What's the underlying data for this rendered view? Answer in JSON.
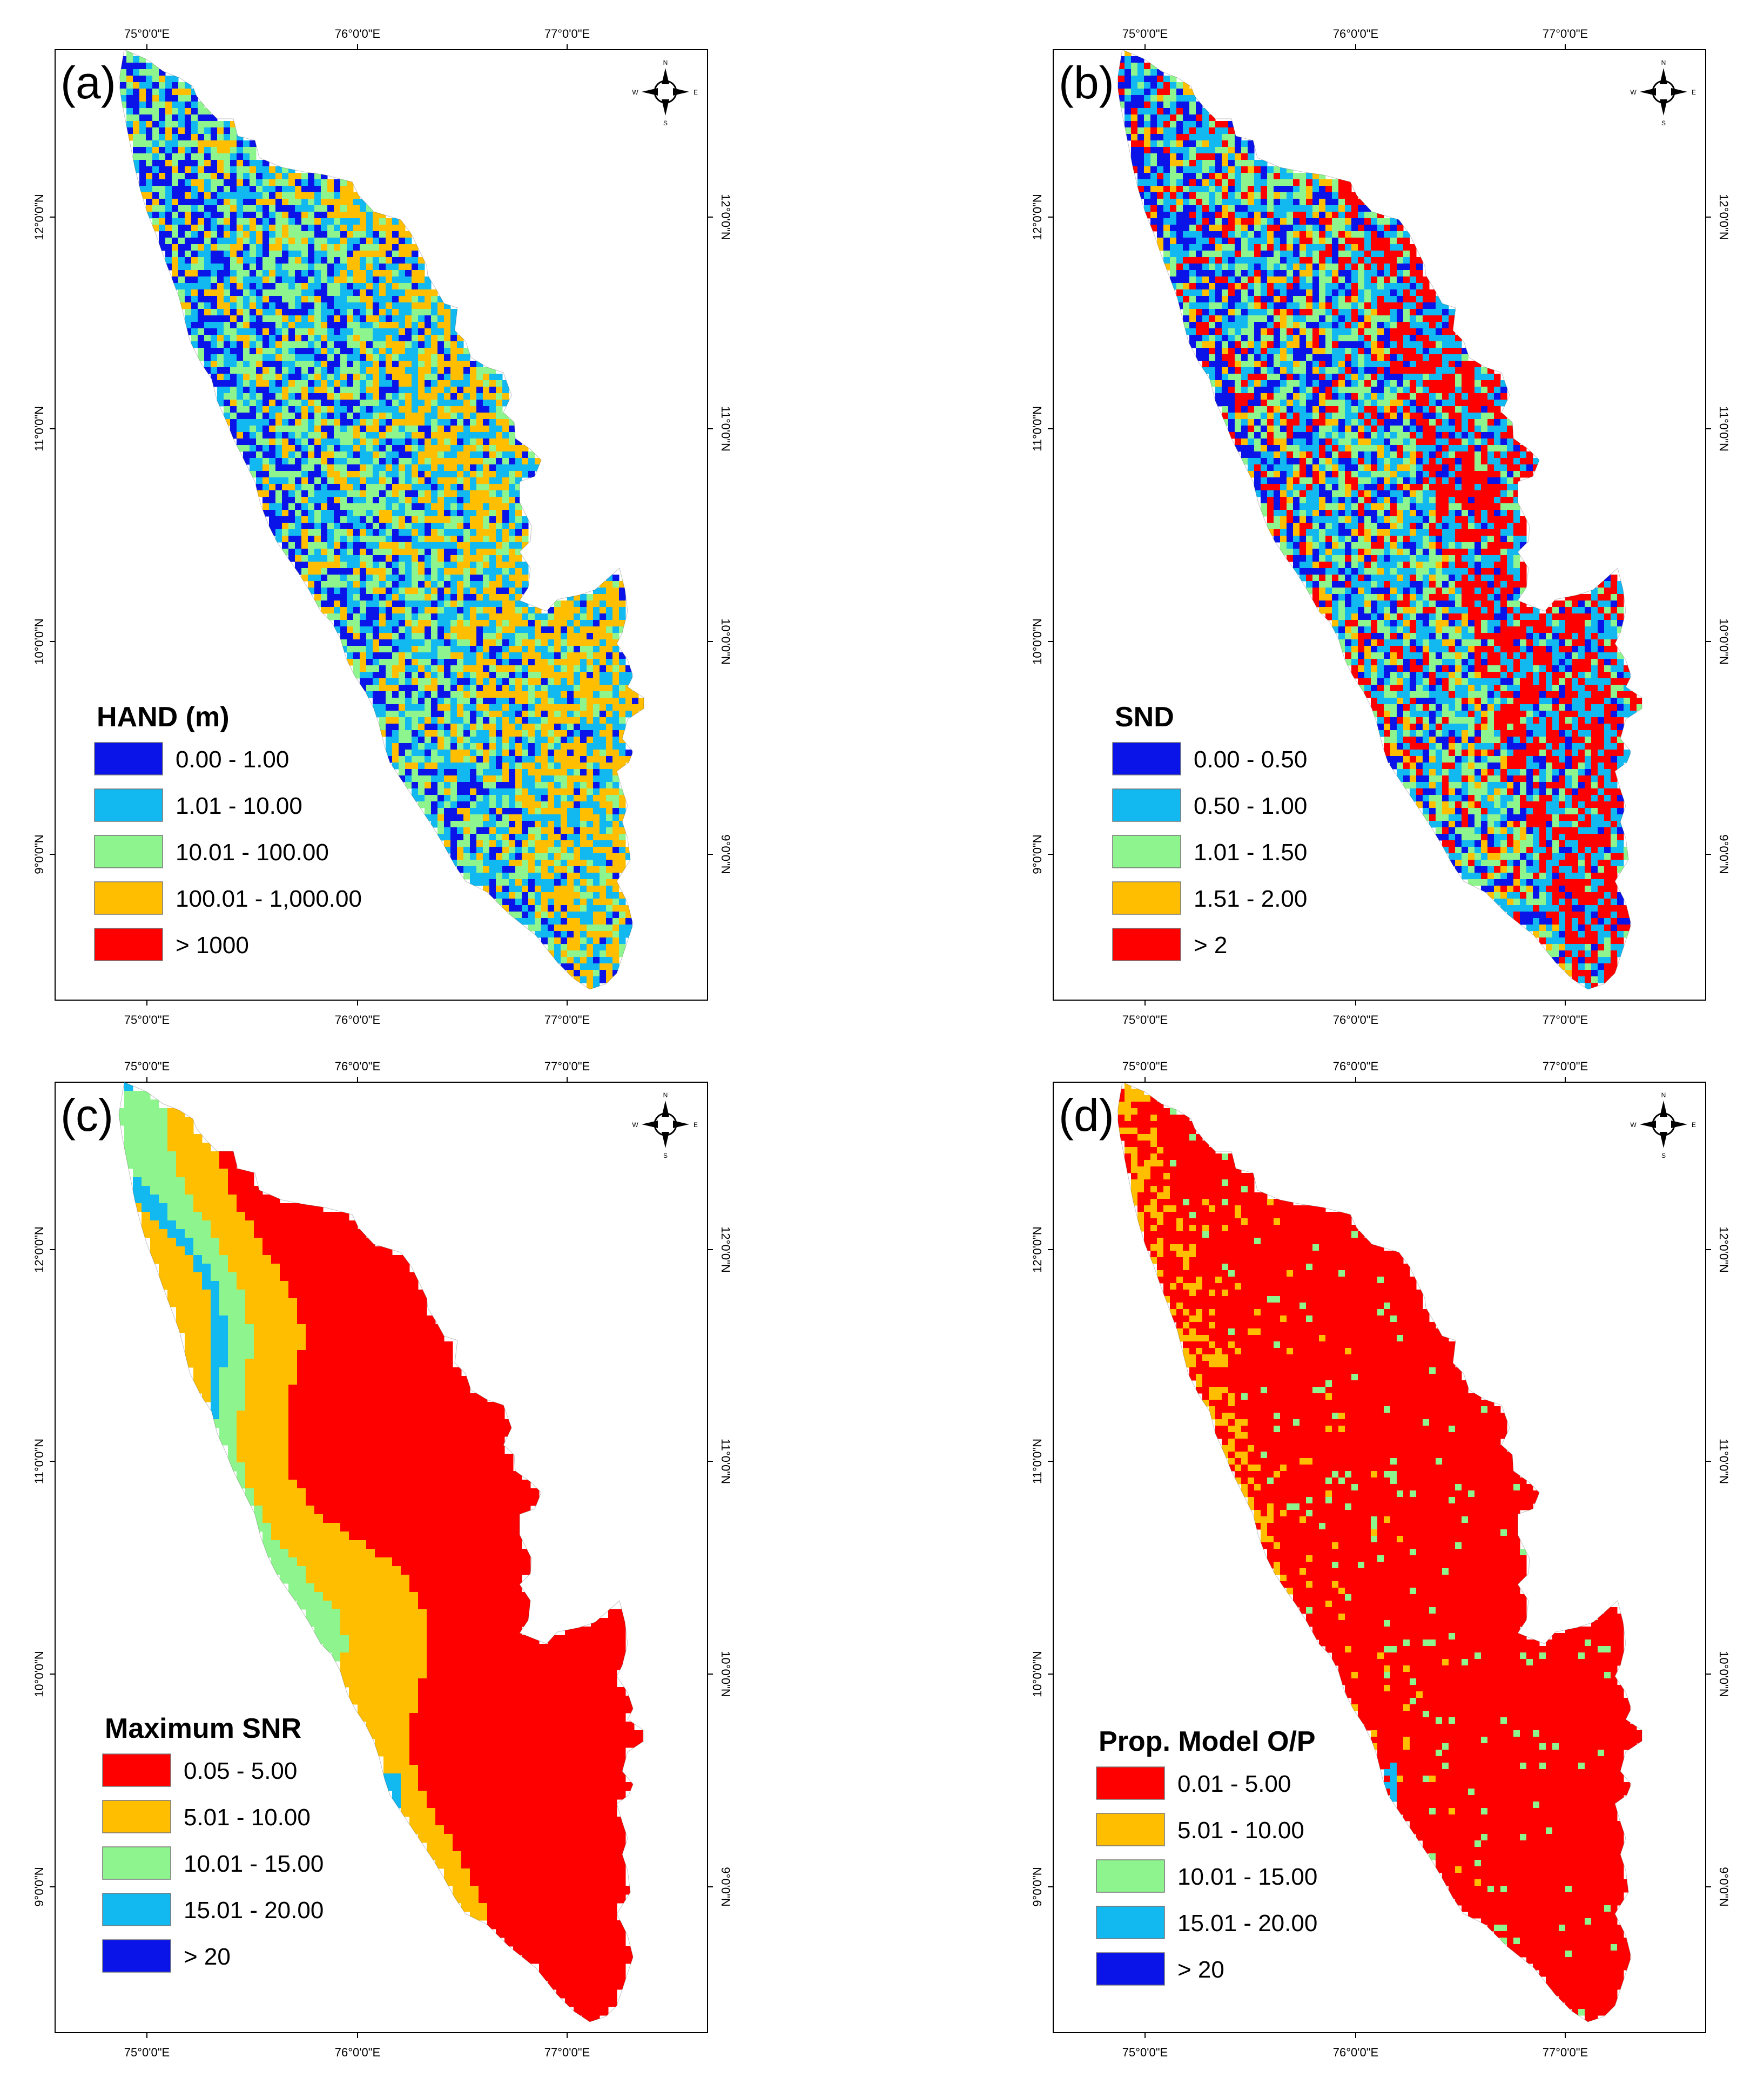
{
  "panels": [
    {
      "label": "(a)",
      "legend_title": "HAND (m)",
      "classes": [
        {
          "label": "0.00 - 1.00",
          "color": "#0a14e8"
        },
        {
          "label": "1.01 - 10.00",
          "color": "#12b8f0"
        },
        {
          "label": "10.01 - 100.00",
          "color": "#8ef58e"
        },
        {
          "label": "100.01 - 1,000.00",
          "color": "#ffbf00"
        },
        {
          "label": "> 1000",
          "color": "#ff0000"
        }
      ],
      "map_palette": [
        "#0a14e8",
        "#12b8f0",
        "#8ef58e",
        "#ffbf00"
      ]
    },
    {
      "label": "(b)",
      "legend_title": "SND",
      "classes": [
        {
          "label": "0.00 - 0.50",
          "color": "#0a14e8"
        },
        {
          "label": "0.50 - 1.00",
          "color": "#12b8f0"
        },
        {
          "label": "1.01 - 1.50",
          "color": "#8ef58e"
        },
        {
          "label": "1.51 - 2.00",
          "color": "#ffbf00"
        },
        {
          "label": "> 2",
          "color": "#ff0000"
        }
      ],
      "map_palette": [
        "#0a14e8",
        "#12b8f0",
        "#8ef58e",
        "#ffbf00",
        "#ff0000"
      ]
    },
    {
      "label": "(c)",
      "legend_title": "Maximum SNR",
      "classes": [
        {
          "label": "0.05 - 5.00",
          "color": "#ff0000"
        },
        {
          "label": "5.01 - 10.00",
          "color": "#ffbf00"
        },
        {
          "label": "10.01 - 15.00",
          "color": "#8ef58e"
        },
        {
          "label": "15.01 - 20.00",
          "color": "#12b8f0"
        },
        {
          "label": "> 20",
          "color": "#0a14e8"
        }
      ],
      "map_palette": [
        "#ff0000",
        "#ffbf00",
        "#8ef58e",
        "#12b8f0",
        "#0a14e8"
      ]
    },
    {
      "label": "(d)",
      "legend_title": "Prop. Model O/P",
      "classes": [
        {
          "label": "0.01 - 5.00",
          "color": "#ff0000"
        },
        {
          "label": "5.01 - 10.00",
          "color": "#ffbf00"
        },
        {
          "label": "10.01 - 15.00",
          "color": "#8ef58e"
        },
        {
          "label": "15.01 - 20.00",
          "color": "#12b8f0"
        },
        {
          "label": "> 20",
          "color": "#0a14e8"
        }
      ],
      "map_palette": [
        "#ff0000",
        "#ffbf00",
        "#8ef58e",
        "#12b8f0",
        "#0a14e8"
      ]
    }
  ],
  "longitude_ticks": [
    "75°0'0\"E",
    "76°0'0\"E",
    "77°0'0\"E"
  ],
  "latitude_ticks": [
    "12°0'0\"N",
    "11°0'0\"N",
    "10°0'0\"N",
    "9°0'0\"N"
  ],
  "compass": {
    "north": "N",
    "south": "S",
    "east": "E",
    "west": "W",
    "icon": "north-arrow-compass-icon"
  }
}
